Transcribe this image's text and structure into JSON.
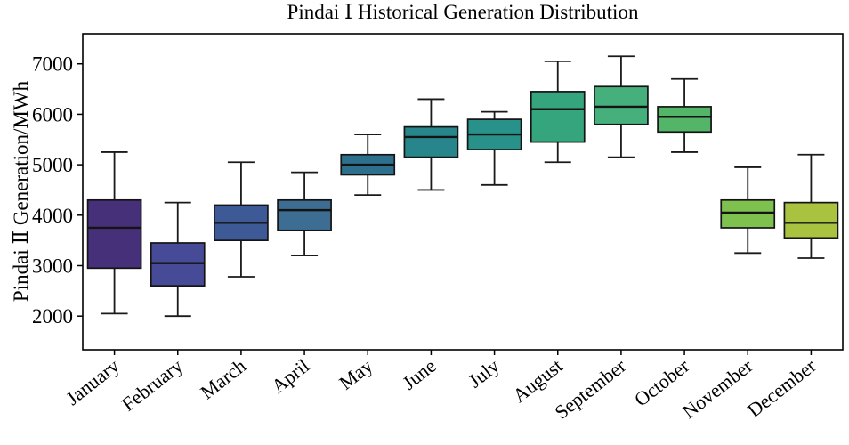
{
  "chart_data": {
    "type": "boxplot",
    "title": "Pindai Ⅰ Historical Generation Distribution",
    "ylabel": "Pindai Ⅱ Generation/MWh",
    "xlabel": "",
    "ylim": [
      1333,
      7595
    ],
    "yticks": [
      2000,
      3000,
      4000,
      5000,
      6000,
      7000
    ],
    "grid": false,
    "legend": "none",
    "frame_color": "#000000",
    "whisker_color": "#1a1a1a",
    "box_edge_color": "#141414",
    "categories": [
      "January",
      "February",
      "March",
      "April",
      "May",
      "June",
      "July",
      "August",
      "September",
      "October",
      "November",
      "December"
    ],
    "series": [
      {
        "name": "January",
        "low": 2050,
        "q1": 2950,
        "median": 3750,
        "q3": 4300,
        "high": 5250,
        "color": "#46307a"
      },
      {
        "name": "February",
        "low": 2000,
        "q1": 2600,
        "median": 3050,
        "q3": 3450,
        "high": 4250,
        "color": "#474a97"
      },
      {
        "name": "March",
        "low": 2780,
        "q1": 3500,
        "median": 3850,
        "q3": 4200,
        "high": 5050,
        "color": "#3d5a96"
      },
      {
        "name": "April",
        "low": 3200,
        "q1": 3700,
        "median": 4100,
        "q3": 4300,
        "high": 4850,
        "color": "#3d6d92"
      },
      {
        "name": "May",
        "low": 4400,
        "q1": 4800,
        "median": 5000,
        "q3": 5200,
        "high": 5600,
        "color": "#2d708e"
      },
      {
        "name": "June",
        "low": 4500,
        "q1": 5150,
        "median": 5550,
        "q3": 5750,
        "high": 6300,
        "color": "#26868c"
      },
      {
        "name": "July",
        "low": 4600,
        "q1": 5300,
        "median": 5600,
        "q3": 5900,
        "high": 6050,
        "color": "#27918a"
      },
      {
        "name": "August",
        "low": 5050,
        "q1": 5450,
        "median": 6100,
        "q3": 6450,
        "high": 7050,
        "color": "#35a57d"
      },
      {
        "name": "September",
        "low": 5150,
        "q1": 5800,
        "median": 6150,
        "q3": 6550,
        "high": 7150,
        "color": "#45b07b"
      },
      {
        "name": "October",
        "low": 5250,
        "q1": 5650,
        "median": 5950,
        "q3": 6150,
        "high": 6700,
        "color": "#52b567"
      },
      {
        "name": "November",
        "low": 3250,
        "q1": 3750,
        "median": 4050,
        "q3": 4300,
        "high": 4950,
        "color": "#7fc14f"
      },
      {
        "name": "December",
        "low": 3150,
        "q1": 3550,
        "median": 3850,
        "q3": 4250,
        "high": 5200,
        "color": "#a9c341"
      }
    ]
  }
}
